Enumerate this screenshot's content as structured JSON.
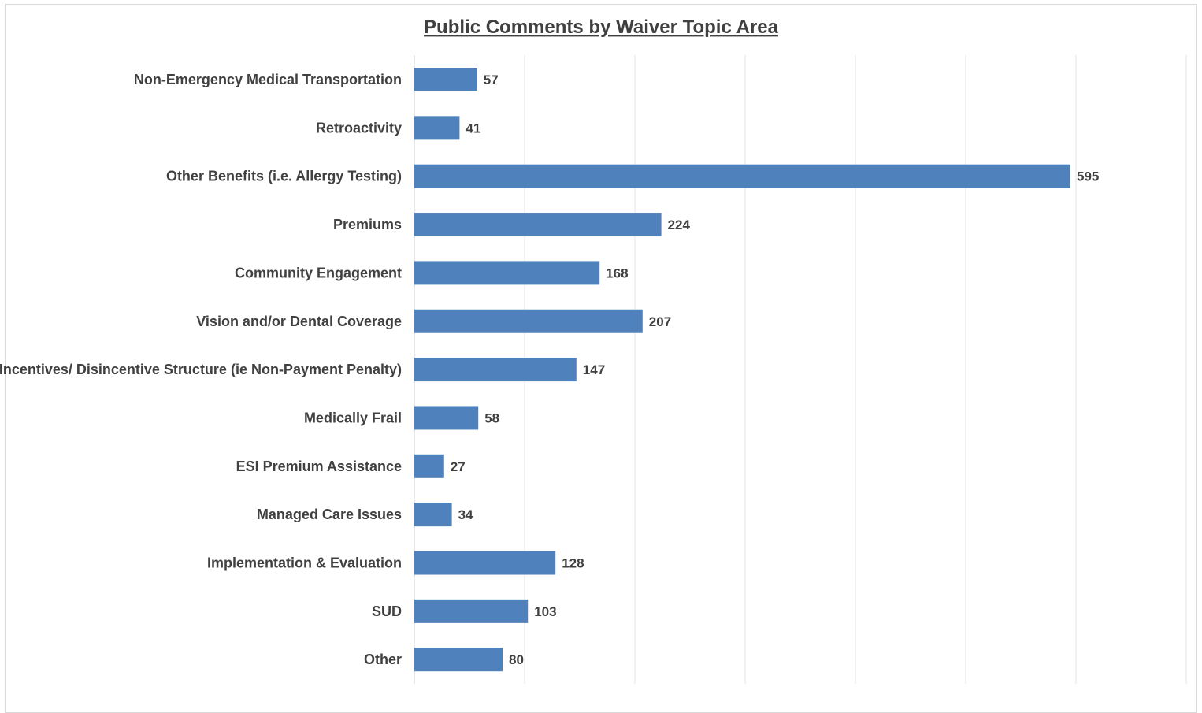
{
  "chart_data": {
    "type": "bar",
    "orientation": "horizontal",
    "title": "Public Comments by Waiver Topic Area",
    "xlabel": "",
    "ylabel": "",
    "xlim": [
      0,
      700
    ],
    "grid": true,
    "legend": "none",
    "bar_color": "#4f81bd",
    "categories": [
      "Non-Emergency Medical Transportation",
      "Retroactivity",
      "Other Benefits (i.e. Allergy Testing)",
      "Premiums",
      "Community Engagement",
      "Vision and/or Dental Coverage",
      "Incentives/ Disincentive Structure (ie Non-Payment Penalty)",
      "Medically Frail",
      "ESI Premium Assistance",
      "Managed Care Issues",
      "Implementation & Evaluation",
      "SUD",
      "Other"
    ],
    "values": [
      57,
      41,
      595,
      224,
      168,
      207,
      147,
      58,
      27,
      34,
      128,
      103,
      80
    ]
  }
}
